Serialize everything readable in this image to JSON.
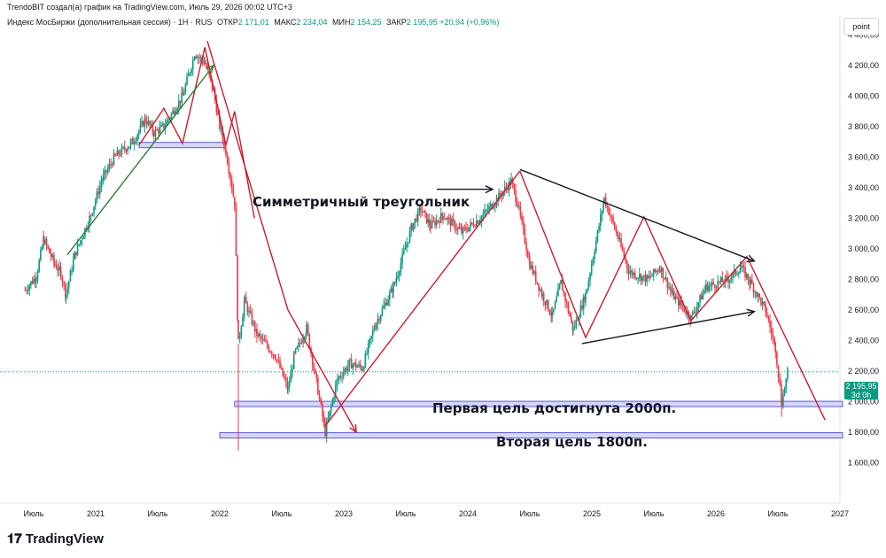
{
  "header": {
    "credit": "TrendoBIT создал(а) график на TradingView.com, Июль 29, 2026 00:02 UTC+3",
    "symbol": "Индекс МосБиржи (дополнительная сессия) · 1H · RUS",
    "open_label": "ОТКР",
    "open_value": "2 171,01",
    "high_label": "МАКС",
    "high_value": "2 234,04",
    "low_label": "МИН",
    "low_value": "2 154,25",
    "close_label": "ЗАКР",
    "close_value": "2 195,95",
    "change": "+20,94 (+0,96%)"
  },
  "price_scale": {
    "unit": "point",
    "last_price": "2 195,95",
    "countdown": "3d 0h"
  },
  "footer": {
    "logo": "TradingView"
  },
  "annotations": {
    "triangle": "Симметричный треугольник",
    "target1": "Первая цель достигнута 2000п.",
    "target2": "Вторая цель 1800п."
  },
  "colors": {
    "up": "#089981",
    "down": "#f23645",
    "trend_red": "#c2185b",
    "trend_green": "#2e7d32",
    "zone": "#5b5bd6",
    "last_line": "#089981"
  },
  "chart_data": {
    "type": "candlestick",
    "title": "Индекс МосБиржи (дополнительная сессия)",
    "ylim": [
      1450,
      4500
    ],
    "y_ticks": [
      1600,
      1800,
      2000,
      2200,
      2400,
      2600,
      2800,
      3000,
      3200,
      3400,
      3600,
      3800,
      4000,
      4200,
      4400
    ],
    "y_tick_labels": [
      "1 600,00",
      "1 800,00",
      "2 000,00",
      "2 200,00",
      "2 400,00",
      "2 600,00",
      "2 800,00",
      "3 000,00",
      "3 200,00",
      "3 400,00",
      "3 600,00",
      "3 800,00",
      "4 000,00",
      "4 200,00",
      "4 400,00"
    ],
    "x_ticks": [
      2020.5,
      2021.0,
      2021.5,
      2022.0,
      2022.5,
      2023.0,
      2023.5,
      2024.0,
      2024.5,
      2025.0,
      2025.5,
      2026.0,
      2026.5,
      2027.0
    ],
    "x_tick_labels": [
      "Июль",
      "2021",
      "Июль",
      "2022",
      "Июль",
      "2023",
      "Июль",
      "2024",
      "Июль",
      "2025",
      "Июль",
      "2026",
      "Июль",
      "2027"
    ],
    "xlim": [
      2020.45,
      2027.1
    ],
    "last_price": 2195.95,
    "price_path": [
      [
        2020.43,
        2730
      ],
      [
        2020.52,
        2820
      ],
      [
        2020.58,
        3060
      ],
      [
        2020.67,
        2900
      ],
      [
        2020.72,
        2840
      ],
      [
        2020.76,
        2700
      ],
      [
        2020.83,
        2960
      ],
      [
        2020.95,
        3200
      ],
      [
        2021.05,
        3450
      ],
      [
        2021.15,
        3600
      ],
      [
        2021.3,
        3700
      ],
      [
        2021.4,
        3850
      ],
      [
        2021.47,
        3760
      ],
      [
        2021.55,
        3800
      ],
      [
        2021.7,
        4000
      ],
      [
        2021.8,
        4280
      ],
      [
        2021.88,
        4220
      ],
      [
        2021.95,
        4030
      ],
      [
        2022.0,
        3800
      ],
      [
        2022.05,
        3640
      ],
      [
        2022.12,
        3300
      ],
      [
        2022.15,
        2380
      ],
      [
        2022.2,
        2660
      ],
      [
        2022.3,
        2440
      ],
      [
        2022.45,
        2300
      ],
      [
        2022.55,
        2080
      ],
      [
        2022.6,
        2300
      ],
      [
        2022.7,
        2480
      ],
      [
        2022.78,
        2130
      ],
      [
        2022.85,
        1800
      ],
      [
        2022.95,
        2150
      ],
      [
        2023.05,
        2250
      ],
      [
        2023.15,
        2220
      ],
      [
        2023.25,
        2500
      ],
      [
        2023.4,
        2750
      ],
      [
        2023.55,
        3150
      ],
      [
        2023.62,
        3260
      ],
      [
        2023.7,
        3150
      ],
      [
        2023.8,
        3220
      ],
      [
        2023.95,
        3110
      ],
      [
        2024.1,
        3200
      ],
      [
        2024.25,
        3340
      ],
      [
        2024.35,
        3440
      ],
      [
        2024.4,
        3300
      ],
      [
        2024.5,
        2900
      ],
      [
        2024.6,
        2700
      ],
      [
        2024.68,
        2560
      ],
      [
        2024.75,
        2780
      ],
      [
        2024.85,
        2470
      ],
      [
        2024.95,
        2700
      ],
      [
        2025.1,
        3330
      ],
      [
        2025.2,
        3100
      ],
      [
        2025.3,
        2850
      ],
      [
        2025.45,
        2800
      ],
      [
        2025.55,
        2880
      ],
      [
        2025.65,
        2700
      ],
      [
        2025.8,
        2550
      ],
      [
        2025.92,
        2750
      ],
      [
        2026.1,
        2800
      ],
      [
        2026.2,
        2880
      ],
      [
        2026.28,
        2780
      ],
      [
        2026.4,
        2600
      ],
      [
        2026.48,
        2350
      ],
      [
        2026.53,
        2000
      ],
      [
        2026.58,
        2195.95
      ]
    ],
    "horizontal_zones": [
      {
        "y": 3680,
        "x_start": 2021.35,
        "x_end": 2022.05
      },
      {
        "y": 1985,
        "x_start": 2022.12,
        "x_end": 2027.1
      },
      {
        "y": 1780,
        "x_start": 2022.0,
        "x_end": 2027.1
      }
    ],
    "trend_lines": [
      {
        "color": "red",
        "points": [
          [
            2021.35,
            3680
          ],
          [
            2021.55,
            3920
          ],
          [
            2021.7,
            3690
          ],
          [
            2021.88,
            4320
          ],
          [
            2022.05,
            3680
          ],
          [
            2022.12,
            3900
          ],
          [
            2022.28,
            3200
          ]
        ]
      },
      {
        "color": "red",
        "points": [
          [
            2021.9,
            4360
          ],
          [
            2022.55,
            2600
          ],
          [
            2023.1,
            1800
          ]
        ]
      },
      {
        "color": "red",
        "points": [
          [
            2022.85,
            1840
          ],
          [
            2024.42,
            3510
          ]
        ]
      },
      {
        "color": "red",
        "points": [
          [
            2024.42,
            3510
          ],
          [
            2024.95,
            2420
          ],
          [
            2025.42,
            3210
          ],
          [
            2025.8,
            2530
          ],
          [
            2026.25,
            2950
          ],
          [
            2026.88,
            1880
          ]
        ]
      },
      {
        "color": "black",
        "points": [
          [
            2024.42,
            3520
          ],
          [
            2026.31,
            2920
          ]
        ]
      },
      {
        "color": "black",
        "points": [
          [
            2024.92,
            2380
          ],
          [
            2026.31,
            2590
          ]
        ]
      },
      {
        "color": "green",
        "points": [
          [
            2020.77,
            2960
          ],
          [
            2021.95,
            4200
          ]
        ]
      }
    ]
  }
}
